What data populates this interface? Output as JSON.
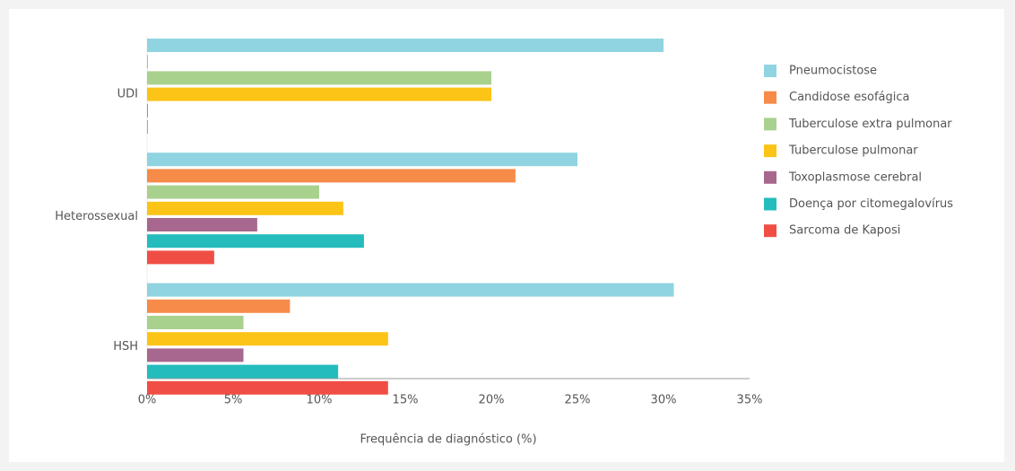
{
  "chart_data": {
    "type": "bar",
    "orientation": "horizontal",
    "x_label": "Frequência de diagnóstico (%)",
    "categories": [
      "UDI",
      "Heterossexual",
      "HSH"
    ],
    "series": [
      {
        "name": "Pneumocistose",
        "color": "#8fd4e0",
        "values": [
          30,
          25,
          30.6
        ]
      },
      {
        "name": "Candidose esofágica",
        "color": "#f68b4a",
        "values": [
          0,
          21.4,
          8.3
        ]
      },
      {
        "name": "Tuberculose extra pulmonar",
        "color": "#a9d18e",
        "values": [
          20,
          10,
          5.6
        ]
      },
      {
        "name": "Tuberculose pulmonar",
        "color": "#fcc416",
        "values": [
          20,
          11.4,
          14
        ]
      },
      {
        "name": "Toxoplasmose cerebral",
        "color": "#a8678e",
        "values": [
          0,
          6.4,
          5.6
        ]
      },
      {
        "name": "Doença por citomegalovírus",
        "color": "#25bcbd",
        "values": [
          0,
          12.6,
          11.1
        ]
      },
      {
        "name": "Sarcoma de Kaposi",
        "color": "#f04e45",
        "values": [
          null,
          3.9,
          14
        ]
      }
    ],
    "xlim": [
      0,
      35
    ],
    "xticks": [
      {
        "value": 0,
        "label": "0%"
      },
      {
        "value": 5,
        "label": "5%"
      },
      {
        "value": 10,
        "label": "10%"
      },
      {
        "value": 15,
        "label": "15%"
      },
      {
        "value": 20,
        "label": "20%"
      },
      {
        "value": 25,
        "label": "25%"
      },
      {
        "value": 30,
        "label": "30%"
      },
      {
        "value": 35,
        "label": "35%"
      }
    ],
    "legend": "right"
  }
}
